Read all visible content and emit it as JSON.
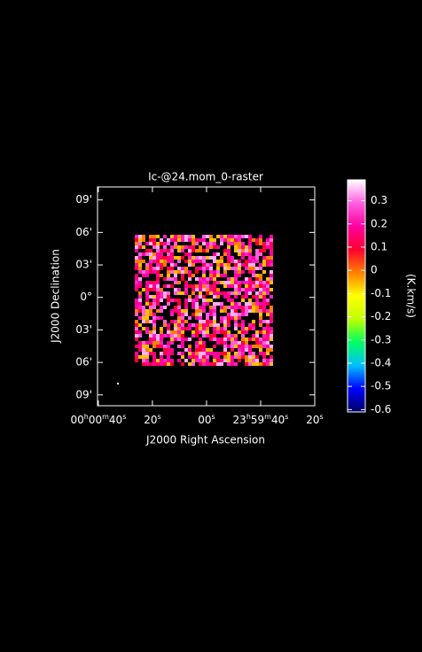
{
  "chart_data": {
    "type": "raster",
    "title": "Ic-@24.mom_0-raster",
    "x_label": "J2000 Right Ascension",
    "y_label": "J2000 Declination",
    "colorbar_label": "(K.km/s)",
    "xlim": [
      40.3,
      -40
    ],
    "xticks": [
      {
        "value": 40,
        "label": [
          "00",
          "h",
          "00",
          "m",
          "40",
          "s"
        ]
      },
      {
        "value": 20,
        "label": [
          "20",
          "s"
        ]
      },
      {
        "value": 0,
        "label": [
          "00",
          "s"
        ]
      },
      {
        "value": -20,
        "label": [
          "23",
          "h",
          "59",
          "m",
          "40",
          "s"
        ]
      },
      {
        "value": -40,
        "label": [
          "20",
          "s"
        ]
      }
    ],
    "ylim": [
      -10,
      10.2
    ],
    "yticks": [
      {
        "value": 9,
        "label": "09'"
      },
      {
        "value": 6,
        "label": "06'"
      },
      {
        "value": 3,
        "label": "03'"
      },
      {
        "value": 0,
        "label": "0°"
      },
      {
        "value": -3,
        "label": "03'"
      },
      {
        "value": -6,
        "label": "06'"
      },
      {
        "value": -9,
        "label": "09'"
      }
    ],
    "clim": [
      -0.61,
      0.39
    ],
    "cticks": [
      0.3,
      0.2,
      0.1,
      0,
      -0.1,
      -0.2,
      -0.3,
      -0.4,
      -0.5,
      -0.6
    ],
    "colormap": [
      "#000060",
      "#0000ff",
      "#00c0ff",
      "#00ff60",
      "#c0ff00",
      "#ffff00",
      "#ff8000",
      "#ff0030",
      "#ff00a0",
      "#ff60e0",
      "#ffffff"
    ]
  }
}
